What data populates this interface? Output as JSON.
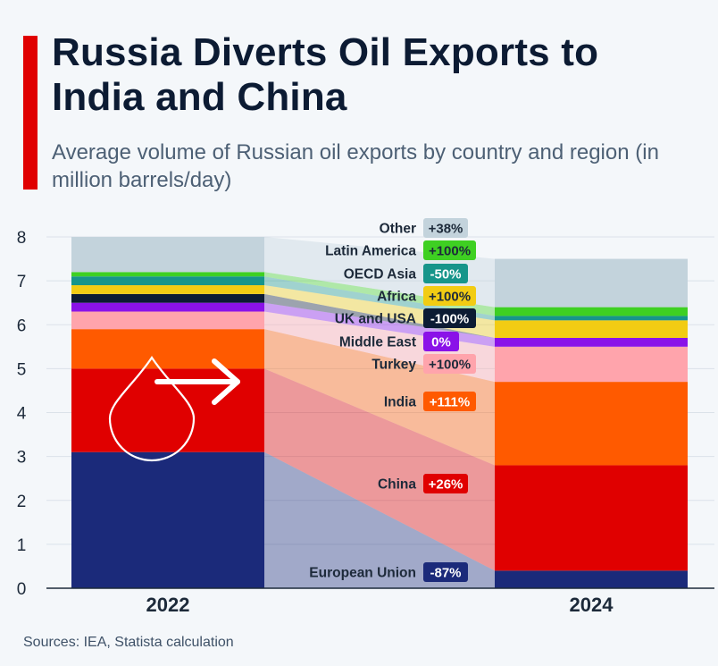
{
  "title": "Russia Diverts Oil Exports to India and China",
  "subtitle": "Average volume of Russian oil exports by country and region (in million barrels/day)",
  "source": "Sources: IEA, Statista calculation",
  "icon_names": [
    "oil-drop-icon",
    "arrow-right-icon"
  ],
  "chart_data": {
    "type": "bar",
    "stacked": true,
    "categories": [
      "2022",
      "2024"
    ],
    "ylim": [
      0,
      8
    ],
    "y_ticks": [
      "0",
      "1",
      "2",
      "3",
      "4",
      "5",
      "6",
      "7",
      "8"
    ],
    "grid": true,
    "series": [
      {
        "name": "European Union",
        "values": [
          3.1,
          0.4
        ],
        "change": "-87%",
        "color": "#1b2a7a",
        "badge_text_color": "#ffffff"
      },
      {
        "name": "China",
        "values": [
          1.9,
          2.4
        ],
        "change": "+26%",
        "color": "#e00000",
        "badge_text_color": "#ffffff"
      },
      {
        "name": "India",
        "values": [
          0.9,
          1.9
        ],
        "change": "+111%",
        "color": "#ff5a00",
        "badge_text_color": "#ffffff"
      },
      {
        "name": "Turkey",
        "values": [
          0.4,
          0.8
        ],
        "change": "+100%",
        "color": "#ffa4ac",
        "badge_text_color": "#1d2a3a"
      },
      {
        "name": "Middle East",
        "values": [
          0.2,
          0.2
        ],
        "change": "0%",
        "color": "#8a12e8",
        "badge_text_color": "#ffffff"
      },
      {
        "name": "UK and USA",
        "values": [
          0.2,
          0.0
        ],
        "change": "-100%",
        "color": "#0c1b33",
        "badge_text_color": "#ffffff"
      },
      {
        "name": "Africa",
        "values": [
          0.2,
          0.4
        ],
        "change": "+100%",
        "color": "#f2cc13",
        "badge_text_color": "#1d2a3a"
      },
      {
        "name": "OECD Asia",
        "values": [
          0.2,
          0.1
        ],
        "change": "-50%",
        "color": "#17958a",
        "badge_text_color": "#ffffff"
      },
      {
        "name": "Latin America",
        "values": [
          0.1,
          0.2
        ],
        "change": "+100%",
        "color": "#3ed022",
        "badge_text_color": "#1d2a3a"
      },
      {
        "name": "Other",
        "values": [
          0.8,
          1.1
        ],
        "change": "+38%",
        "color": "#c3d3dc",
        "badge_text_color": "#1d2a3a"
      }
    ]
  }
}
